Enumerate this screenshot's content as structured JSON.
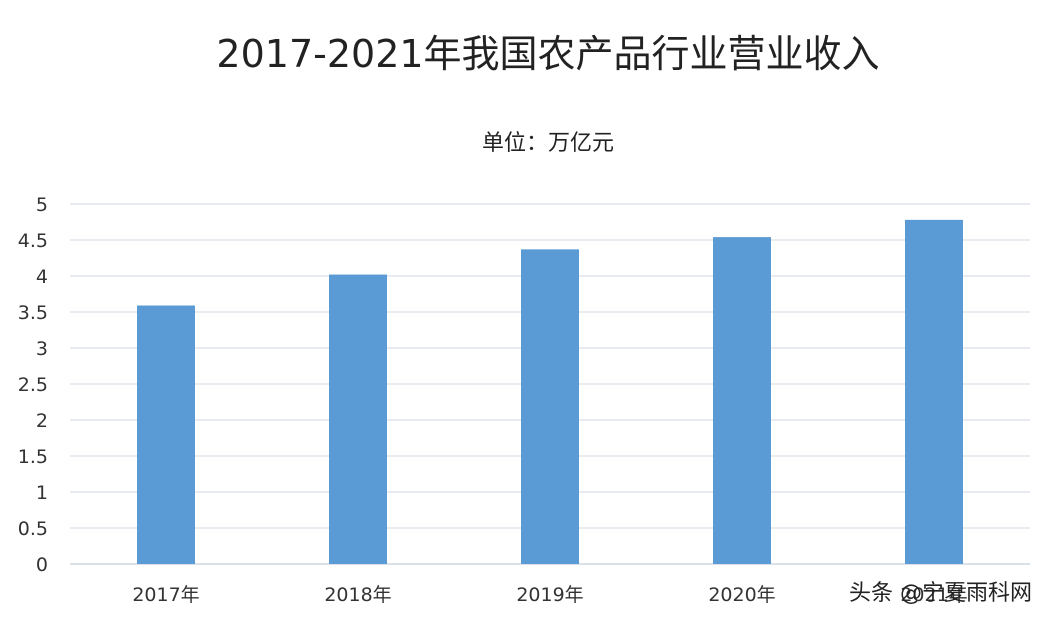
{
  "chart_data": {
    "type": "bar",
    "title": "2017-2021年我国农产品行业营业收入",
    "subtitle": "单位：万亿元",
    "categories": [
      "2017年",
      "2018年",
      "2019年",
      "2020年",
      "2021年"
    ],
    "values": [
      3.59,
      4.02,
      4.37,
      4.54,
      4.78
    ],
    "xlabel": "",
    "ylabel": "",
    "ylim": [
      0,
      5
    ],
    "yticks": [
      "0",
      "0.5",
      "1",
      "1.5",
      "2",
      "2.5",
      "3",
      "3.5",
      "4",
      "4.5",
      "5"
    ],
    "grid": true,
    "bar_color": "#5b9bd5",
    "grid_color": "#d0d7e2"
  },
  "watermark": "头条 @宁夏雨科网"
}
